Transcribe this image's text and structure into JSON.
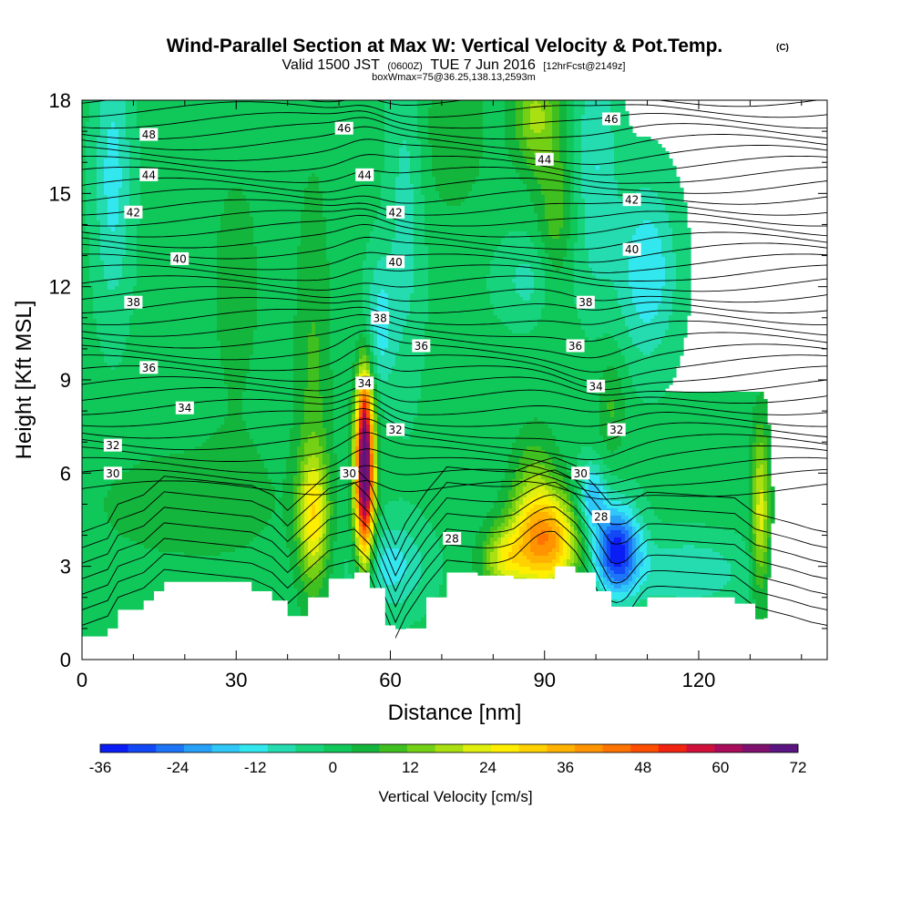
{
  "chart_data": {
    "type": "heatmap",
    "title": "Wind-Parallel Section at Max W: Vertical Velocity & Pot.Temp.",
    "title_mark": "(C)",
    "subtitle_prefix": "Valid 1500 JST",
    "subtitle_utc": "(0600Z)",
    "subtitle_date": "TUE 7 Jun 2016",
    "subtitle_fcst": "[12hrFcst@2149z]",
    "subsubtitle": "boxWmax=75@36.25,138.13,2593m",
    "xlabel": "Distance [nm]",
    "ylabel": "Height [Kft MSL]",
    "xlim": [
      0,
      145
    ],
    "ylim": [
      0,
      18
    ],
    "xticks": [
      0,
      30,
      60,
      90,
      120
    ],
    "yticks": [
      0,
      3,
      6,
      9,
      12,
      15,
      18
    ],
    "colorbar": {
      "title": "Vertical Velocity [cm/s]",
      "ticks": [
        "-36",
        "-24",
        "-12",
        "0",
        "12",
        "24",
        "36",
        "48",
        "60",
        "72"
      ],
      "min": -36,
      "max": 72,
      "colors": [
        "#0a1df5",
        "#1248f6",
        "#1d74f7",
        "#27a0f8",
        "#2fc7f7",
        "#33e7ef",
        "#24dcb0",
        "#17d37c",
        "#10c85a",
        "#14b53c",
        "#40c020",
        "#74d015",
        "#aadf12",
        "#e0ef0e",
        "#ffee00",
        "#ffd100",
        "#ffb300",
        "#ff9400",
        "#ff7300",
        "#fe4e00",
        "#f02410",
        "#d0123a",
        "#a80c5a",
        "#80106e",
        "#5a1580"
      ]
    },
    "terrain": [
      [
        0,
        0.7
      ],
      [
        5,
        1.0
      ],
      [
        7,
        1.6
      ],
      [
        12,
        1.9
      ],
      [
        14,
        2.2
      ],
      [
        16,
        2.5
      ],
      [
        33,
        2.2
      ],
      [
        37,
        1.9
      ],
      [
        40,
        1.4
      ],
      [
        44,
        2.0
      ],
      [
        48,
        2.6
      ],
      [
        53,
        2.8
      ],
      [
        56,
        2.3
      ],
      [
        59,
        1.1
      ],
      [
        61,
        0.3
      ],
      [
        63,
        1.0
      ],
      [
        67,
        2.0
      ],
      [
        71,
        2.8
      ],
      [
        77,
        2.7
      ],
      [
        84,
        2.6
      ],
      [
        92,
        3.0
      ],
      [
        96,
        2.8
      ],
      [
        100,
        2.2
      ],
      [
        103,
        1.7
      ],
      [
        106,
        1.7
      ],
      [
        110,
        2.0
      ],
      [
        127,
        1.8
      ],
      [
        131,
        1.3
      ],
      [
        138,
        1.0
      ],
      [
        142,
        0.8
      ],
      [
        145,
        0.7
      ]
    ],
    "w_features": [
      {
        "x": 55,
        "z": 5.8,
        "sx": 1.3,
        "sz": 1.9,
        "w": 72
      },
      {
        "x": 55,
        "z": 8.0,
        "sx": 1.0,
        "sz": 1.2,
        "w": 20
      },
      {
        "x": 45,
        "z": 4.6,
        "sx": 2.0,
        "sz": 1.4,
        "w": 22
      },
      {
        "x": 90,
        "z": 3.8,
        "sx": 4.6,
        "sz": 1.1,
        "w": 40
      },
      {
        "x": 82,
        "z": 3.2,
        "sx": 3.0,
        "sz": 0.7,
        "w": 18
      },
      {
        "x": 88,
        "z": 5.8,
        "sx": 3.0,
        "sz": 1.2,
        "w": 10
      },
      {
        "x": 132,
        "z": 4.8,
        "sx": 1.2,
        "sz": 1.9,
        "w": 22
      },
      {
        "x": 104,
        "z": 3.5,
        "sx": 3.2,
        "sz": 1.0,
        "w": -34
      },
      {
        "x": 99,
        "z": 5.2,
        "sx": 2.0,
        "sz": 0.8,
        "w": -18
      },
      {
        "x": 60,
        "z": 3.0,
        "sx": 5.0,
        "sz": 1.0,
        "w": -12
      },
      {
        "x": 118,
        "z": 2.8,
        "sx": 8.0,
        "sz": 0.8,
        "w": -10
      },
      {
        "x": 6,
        "z": 15.5,
        "sx": 2.5,
        "sz": 3.0,
        "w": -12
      },
      {
        "x": 58,
        "z": 10.8,
        "sx": 2.0,
        "sz": 1.5,
        "w": -12
      },
      {
        "x": 63,
        "z": 14.5,
        "sx": 2.5,
        "sz": 4.0,
        "w": -8
      },
      {
        "x": 110,
        "z": 12.5,
        "sx": 4.0,
        "sz": 2.0,
        "w": -14
      },
      {
        "x": 88,
        "z": 12.2,
        "sx": 5.0,
        "sz": 1.0,
        "w": -8
      },
      {
        "x": 100,
        "z": 16.0,
        "sx": 3.0,
        "sz": 3.0,
        "w": -10
      },
      {
        "x": 45,
        "z": 8.5,
        "sx": 2.5,
        "sz": 5.0,
        "w": 8
      },
      {
        "x": 88,
        "z": 17.5,
        "sx": 3.0,
        "sz": 1.2,
        "w": 16
      },
      {
        "x": 92,
        "z": 14.0,
        "sx": 2.5,
        "sz": 2.5,
        "w": 10
      },
      {
        "x": 103,
        "z": 8.2,
        "sx": 2.0,
        "sz": 1.2,
        "w": 8
      },
      {
        "x": 20,
        "z": 5.0,
        "sx": 15.0,
        "sz": 1.5,
        "w": 5
      },
      {
        "x": 72,
        "z": 17.0,
        "sx": 5.0,
        "sz": 2.0,
        "w": 6
      },
      {
        "x": 30,
        "z": 12.0,
        "sx": 5.0,
        "sz": 4.0,
        "w": 4
      }
    ],
    "theta_contours": [
      {
        "label": "30",
        "base": 5.5
      },
      {
        "label": "32",
        "base": 7.0
      },
      {
        "label": "34",
        "base": 8.5
      },
      {
        "label": "36",
        "base": 9.9
      },
      {
        "label": "38",
        "base": 11.4
      },
      {
        "label": "40",
        "base": 12.8
      },
      {
        "label": "42",
        "base": 14.2
      },
      {
        "label": "44",
        "base": 15.6
      },
      {
        "label": "46",
        "base": 17.0
      }
    ],
    "contour_labels": [
      {
        "text": "48",
        "x": 13,
        "z": 16.9
      },
      {
        "text": "46",
        "x": 51,
        "z": 17.1
      },
      {
        "text": "46",
        "x": 103,
        "z": 17.4
      },
      {
        "text": "44",
        "x": 13,
        "z": 15.6
      },
      {
        "text": "44",
        "x": 55,
        "z": 15.6
      },
      {
        "text": "44",
        "x": 90,
        "z": 16.1
      },
      {
        "text": "42",
        "x": 10,
        "z": 14.4
      },
      {
        "text": "42",
        "x": 61,
        "z": 14.4
      },
      {
        "text": "42",
        "x": 107,
        "z": 14.8
      },
      {
        "text": "40",
        "x": 19,
        "z": 12.9
      },
      {
        "text": "40",
        "x": 61,
        "z": 12.8
      },
      {
        "text": "40",
        "x": 107,
        "z": 13.2
      },
      {
        "text": "38",
        "x": 10,
        "z": 11.5
      },
      {
        "text": "38",
        "x": 58,
        "z": 11.0
      },
      {
        "text": "38",
        "x": 98,
        "z": 11.5
      },
      {
        "text": "36",
        "x": 13,
        "z": 9.4
      },
      {
        "text": "36",
        "x": 66,
        "z": 10.1
      },
      {
        "text": "36",
        "x": 96,
        "z": 10.1
      },
      {
        "text": "34",
        "x": 20,
        "z": 8.1
      },
      {
        "text": "34",
        "x": 55,
        "z": 8.9
      },
      {
        "text": "34",
        "x": 100,
        "z": 8.8
      },
      {
        "text": "32",
        "x": 6,
        "z": 6.9
      },
      {
        "text": "32",
        "x": 61,
        "z": 7.4
      },
      {
        "text": "32",
        "x": 104,
        "z": 7.4
      },
      {
        "text": "30",
        "x": 6,
        "z": 6.0
      },
      {
        "text": "30",
        "x": 52,
        "z": 6.0
      },
      {
        "text": "30",
        "x": 97,
        "z": 6.0
      },
      {
        "text": "28",
        "x": 72,
        "z": 3.9
      },
      {
        "text": "28",
        "x": 101,
        "z": 4.6
      }
    ]
  }
}
